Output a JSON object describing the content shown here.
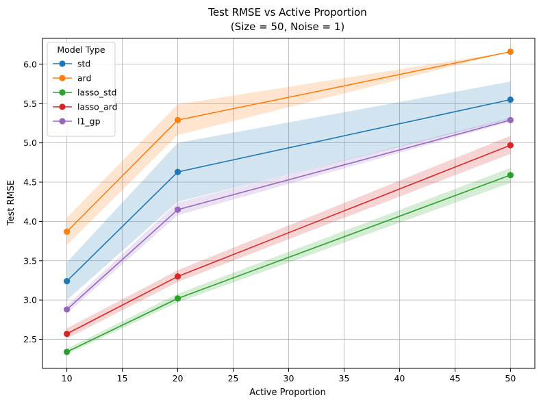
{
  "chart_data": {
    "type": "line",
    "title": "Test RMSE vs Active Proportion",
    "subtitle": "(Size = 50, Noise = 1)",
    "xlabel": "Active Proportion",
    "ylabel": "Test RMSE",
    "xlim": [
      7.8,
      52.2
    ],
    "ylim": [
      2.13,
      6.33
    ],
    "x": [
      10,
      20,
      50
    ],
    "xticks": [
      10,
      15,
      20,
      25,
      30,
      35,
      40,
      45,
      50
    ],
    "xtick_labels": [
      "10",
      "15",
      "20",
      "25",
      "30",
      "35",
      "40",
      "45",
      "50"
    ],
    "yticks": [
      2.5,
      3.0,
      3.5,
      4.0,
      4.5,
      5.0,
      5.5,
      6.0
    ],
    "ytick_labels": [
      "2.5",
      "3.0",
      "3.5",
      "4.0",
      "4.5",
      "5.0",
      "5.5",
      "6.0"
    ],
    "grid": true,
    "legend": {
      "title": "Model Type",
      "placement": "top-left"
    },
    "series": [
      {
        "name": "std",
        "color": "#1f77b4",
        "values": [
          3.24,
          4.63,
          5.55
        ],
        "lower": [
          3.0,
          4.25,
          5.3
        ],
        "upper": [
          3.48,
          5.0,
          5.78
        ]
      },
      {
        "name": "ard",
        "color": "#ff7f0e",
        "values": [
          3.87,
          5.29,
          6.16
        ],
        "lower": [
          3.7,
          5.1,
          6.16
        ],
        "upper": [
          4.05,
          5.49,
          6.16
        ]
      },
      {
        "name": "lasso_std",
        "color": "#2ca02c",
        "values": [
          2.34,
          3.02,
          4.59
        ],
        "lower": [
          2.31,
          2.97,
          4.49
        ],
        "upper": [
          2.38,
          3.08,
          4.68
        ]
      },
      {
        "name": "lasso_ard",
        "color": "#d62728",
        "values": [
          2.57,
          3.3,
          4.97
        ],
        "lower": [
          2.51,
          3.23,
          4.86
        ],
        "upper": [
          2.64,
          3.38,
          5.09
        ]
      },
      {
        "name": "l1_gp",
        "color": "#9467bd",
        "values": [
          2.88,
          4.15,
          5.29
        ],
        "lower": [
          2.83,
          4.08,
          5.27
        ],
        "upper": [
          2.93,
          4.24,
          5.32
        ]
      }
    ]
  }
}
